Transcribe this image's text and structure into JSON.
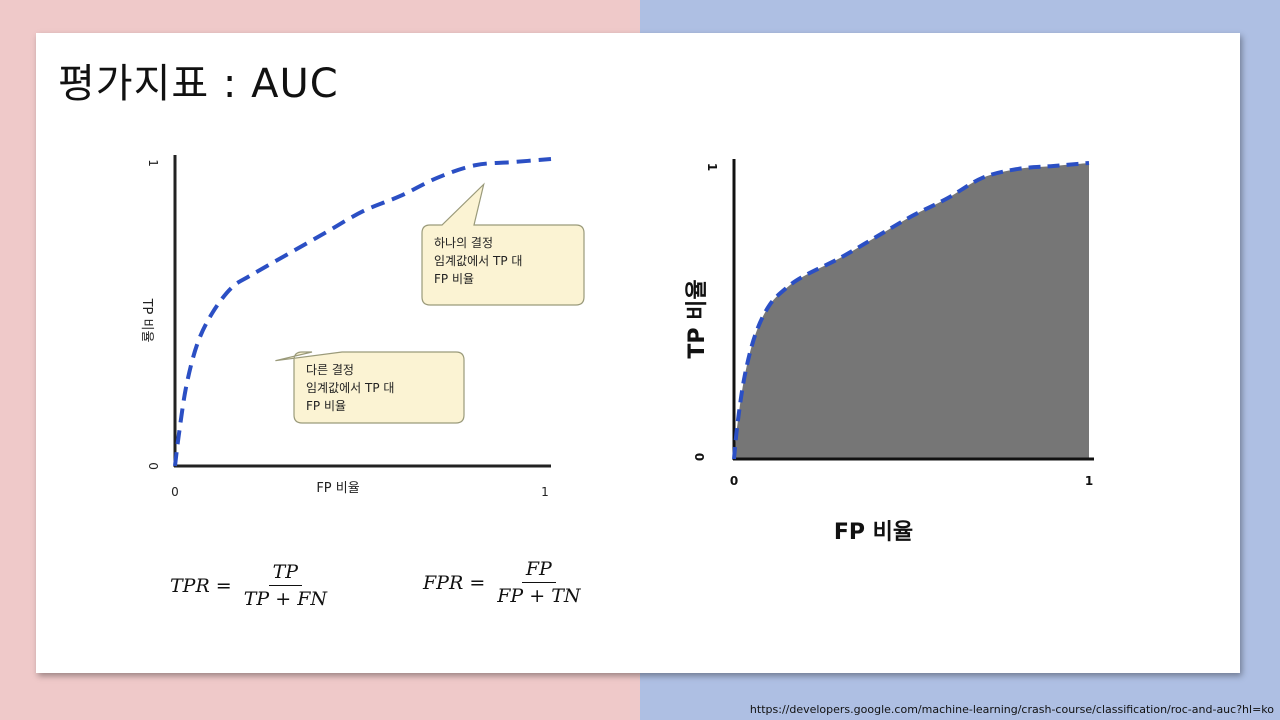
{
  "slide": {
    "title": "평가지표 : AUC",
    "source": "https://developers.google.com/machine-learning/crash-course/classification/roc-and-auc?hl=ko"
  },
  "formulas": {
    "tpr": {
      "lhs": "TPR =",
      "num": "TP",
      "den": "TP + FN"
    },
    "fpr": {
      "lhs": "FPR =",
      "num": "FP",
      "den": "FP + TN"
    }
  },
  "colors": {
    "curve": "#2b4fc4",
    "auc_fill": "#767676",
    "callout_fill": "#fbf3d3",
    "callout_border": "#9a9a7a"
  },
  "chart_data": [
    {
      "type": "line",
      "xlabel": "FP 비율",
      "ylabel": "TP 비율",
      "xlim": [
        0,
        1
      ],
      "ylim": [
        0,
        1
      ],
      "x_ticks": [
        "0",
        "1"
      ],
      "y_ticks": [
        "0",
        "1"
      ],
      "series": [
        {
          "style": "dashed",
          "x": [
            0,
            0.01,
            0.03,
            0.06,
            0.1,
            0.15,
            0.2,
            0.3,
            0.4,
            0.5,
            0.6,
            0.7,
            0.8,
            0.9,
            1.0
          ],
          "y": [
            0,
            0.1,
            0.26,
            0.4,
            0.5,
            0.58,
            0.62,
            0.69,
            0.76,
            0.83,
            0.88,
            0.94,
            0.98,
            0.99,
            1.0
          ]
        }
      ],
      "annotations": [
        {
          "text": [
            "하나의 결정",
            "임계값에서 TP 대",
            "FP 비율"
          ],
          "x": 0.72,
          "y": 0.95
        },
        {
          "text": [
            "다른 결정",
            "임계값에서 TP 대",
            "FP 비율"
          ],
          "x": 0.15,
          "y": 0.47
        }
      ]
    },
    {
      "type": "area",
      "xlabel": "FP 비율",
      "ylabel": "TP 비율",
      "xlim": [
        0,
        1
      ],
      "ylim": [
        0,
        1
      ],
      "x_ticks": [
        "0",
        "1"
      ],
      "y_ticks": [
        "0",
        "1"
      ],
      "series": [
        {
          "style": "dashed",
          "x": [
            0,
            0.01,
            0.03,
            0.06,
            0.1,
            0.15,
            0.2,
            0.3,
            0.4,
            0.5,
            0.6,
            0.7,
            0.8,
            0.9,
            1.0
          ],
          "y": [
            0,
            0.12,
            0.28,
            0.42,
            0.52,
            0.58,
            0.62,
            0.68,
            0.75,
            0.82,
            0.88,
            0.95,
            0.98,
            0.99,
            1.0
          ]
        }
      ]
    }
  ]
}
